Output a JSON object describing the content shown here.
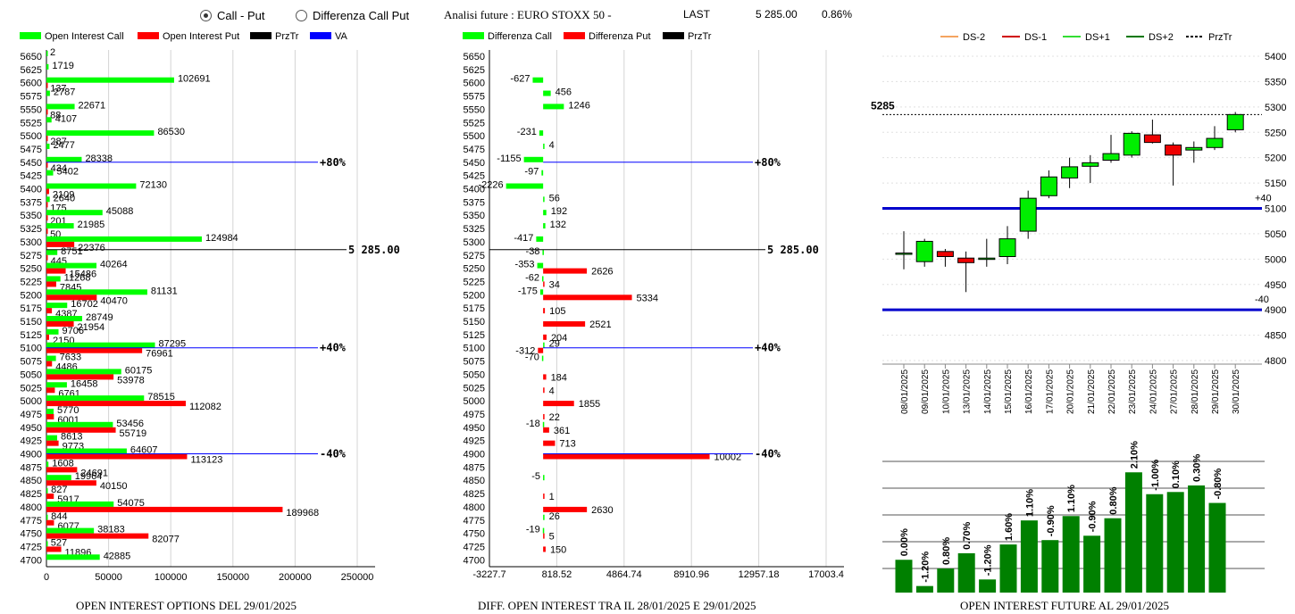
{
  "header": {
    "radio_call_put": "Call - Put",
    "radio_diff": "Differenza Call Put",
    "future_title": "Analisi future : EURO STOXX 50 -",
    "last_label": "LAST",
    "last_value": "5 285.00",
    "last_change": "0.86%"
  },
  "captions": {
    "left": "OPEN INTEREST OPTIONS DEL 29/01/2025",
    "middle": "DIFF. OPEN INTEREST TRA IL 28/01/2025 E 29/01/2025",
    "right": "OPEN INTEREST FUTURE AL 29/01/2025"
  },
  "colors": {
    "call": "#00ff00",
    "put": "#ff0000",
    "przt": "#000000",
    "va": "#0000ff",
    "future_bar": "#008000"
  },
  "chart_data": [
    {
      "type": "bar",
      "orientation": "horizontal",
      "legend": [
        "Open Interest Call",
        "Open Interest Put",
        "PrzTr",
        "VA"
      ],
      "categories": [
        "5650",
        "5625",
        "5600",
        "5575",
        "5550",
        "5525",
        "5500",
        "5475",
        "5450",
        "5425",
        "5400",
        "5375",
        "5350",
        "5325",
        "5300",
        "5275",
        "5250",
        "5225",
        "5200",
        "5175",
        "5150",
        "5125",
        "5100",
        "5075",
        "5050",
        "5025",
        "5000",
        "4975",
        "4950",
        "4925",
        "4900",
        "4875",
        "4850",
        "4825",
        "4800",
        "4775",
        "4750",
        "4725",
        "4700"
      ],
      "series": [
        {
          "name": "Open Interest Call",
          "values": [
            2,
            1719,
            102691,
            2787,
            22671,
            4107,
            86530,
            2477,
            28338,
            5402,
            72130,
            2640,
            45088,
            21985,
            124984,
            8751,
            40264,
            11268,
            81131,
            16702,
            28749,
            9706,
            87295,
            7633,
            60175,
            16458,
            78515,
            5770,
            53456,
            8613,
            64607,
            1608,
            19964,
            827,
            54075,
            844,
            38183,
            527,
            42885
          ]
        },
        {
          "name": "Open Interest Put",
          "values": [
            null,
            null,
            137,
            null,
            88,
            null,
            287,
            null,
            434,
            null,
            2109,
            175,
            201,
            50,
            22376,
            445,
            15486,
            7845,
            40470,
            4387,
            21954,
            2150,
            76961,
            4486,
            53978,
            6761,
            112082,
            6001,
            55719,
            9773,
            113123,
            24691,
            40150,
            5917,
            189968,
            6077,
            82077,
            11896,
            null
          ]
        }
      ],
      "price_line": {
        "label": "5 285.00",
        "value": 5285
      },
      "va_lines": [
        {
          "label": "+80%",
          "strike": "5450"
        },
        {
          "label": "+40%",
          "strike": "5100"
        },
        {
          "label": "-40%",
          "strike": "4900"
        }
      ],
      "xticks": [
        "0",
        "50000",
        "100000",
        "150000",
        "200000",
        "250000"
      ],
      "xlim": [
        0,
        250000
      ]
    },
    {
      "type": "bar",
      "orientation": "horizontal",
      "legend": [
        "Differenza Call",
        "Differenza Put",
        "PrzTr"
      ],
      "categories": [
        "5650",
        "5625",
        "5600",
        "5575",
        "5550",
        "5525",
        "5500",
        "5475",
        "5450",
        "5425",
        "5400",
        "5375",
        "5350",
        "5325",
        "5300",
        "5275",
        "5250",
        "5225",
        "5200",
        "5175",
        "5150",
        "5125",
        "5100",
        "5075",
        "5050",
        "5025",
        "5000",
        "4975",
        "4950",
        "4925",
        "4900",
        "4875",
        "4850",
        "4825",
        "4800",
        "4775",
        "4750",
        "4725",
        "4700"
      ],
      "series": [
        {
          "name": "Differenza Call",
          "values": [
            null,
            null,
            -627,
            456,
            1246,
            null,
            -231,
            4,
            -1155,
            -97,
            -2226,
            56,
            192,
            132,
            -417,
            -38,
            -353,
            -62,
            -175,
            null,
            null,
            null,
            29,
            -70,
            null,
            null,
            null,
            null,
            -18,
            null,
            null,
            null,
            -5,
            null,
            null,
            26,
            -19,
            null,
            null
          ]
        },
        {
          "name": "Differenza Put",
          "values": [
            null,
            null,
            null,
            null,
            null,
            null,
            null,
            null,
            null,
            null,
            null,
            null,
            null,
            null,
            null,
            null,
            2626,
            34,
            5334,
            105,
            2521,
            204,
            -312,
            null,
            184,
            4,
            1855,
            22,
            361,
            713,
            10002,
            null,
            null,
            1,
            2630,
            null,
            5,
            150,
            null
          ]
        }
      ],
      "price_line": {
        "label": "5 285.00",
        "value": 5285
      },
      "va_lines": [
        {
          "label": "+80%",
          "strike": "5450"
        },
        {
          "label": "+40%",
          "strike": "5100"
        },
        {
          "label": "-40%",
          "strike": "4900"
        }
      ],
      "xticks": [
        "-3227.7",
        "818.52",
        "4864.74",
        "8910.96",
        "12957.18",
        "17003.4"
      ],
      "xlim": [
        -3227.7,
        17003.4
      ]
    },
    {
      "type": "candlestick",
      "legend": [
        "DS-2",
        "DS-1",
        "DS+1",
        "DS+2",
        "PrzTr"
      ],
      "dates": [
        "08/01/2025",
        "09/01/2025",
        "10/01/2025",
        "13/01/2025",
        "14/01/2025",
        "15/01/2025",
        "16/01/2025",
        "17/01/2025",
        "20/01/2025",
        "21/01/2025",
        "22/01/2025",
        "23/01/2025",
        "24/01/2025",
        "27/01/2025",
        "28/01/2025",
        "29/01/2025",
        "30/01/2025"
      ],
      "open": [
        5010,
        4995,
        5015,
        5002,
        5000,
        5005,
        5055,
        5125,
        5160,
        5183,
        5195,
        5205,
        5245,
        5225,
        5215,
        5220,
        5255
      ],
      "close": [
        5012,
        5035,
        5005,
        4993,
        5002,
        5040,
        5120,
        5162,
        5182,
        5190,
        5208,
        5248,
        5230,
        5205,
        5220,
        5238,
        5285
      ],
      "high": [
        5055,
        5040,
        5020,
        5015,
        5040,
        5065,
        5135,
        5175,
        5200,
        5205,
        5245,
        5252,
        5275,
        5230,
        5232,
        5262,
        5290
      ],
      "low": [
        4980,
        4985,
        4985,
        4935,
        4985,
        4990,
        5040,
        5120,
        5140,
        5150,
        5190,
        5200,
        5228,
        5145,
        5190,
        5215,
        5250
      ],
      "price_marker": {
        "label": "5285",
        "value": 5285
      },
      "bands": [
        {
          "label": "+40",
          "value": 5100
        },
        {
          "label": "-40",
          "value": 4900
        }
      ],
      "yticks": [
        "5400",
        "5350",
        "5300",
        "5250",
        "5200",
        "5150",
        "5100",
        "5050",
        "5000",
        "4950",
        "4900",
        "4850",
        "4800"
      ],
      "ylim": [
        4800,
        5400
      ]
    },
    {
      "type": "bar",
      "bar_labels": [
        "0.00%",
        "-1.20%",
        "0.80%",
        "0.70%",
        "-1.20%",
        "1.60%",
        "1.10%",
        "-0.90%",
        "1.10%",
        "-0.90%",
        "0.80%",
        "2.10%",
        "-1.00%",
        "0.10%",
        "0.30%",
        "-0.80%"
      ],
      "values": [
        100.0,
        98.8,
        99.6,
        100.3,
        99.1,
        100.7,
        101.8,
        100.9,
        102.0,
        101.1,
        101.9,
        104.0,
        103.0,
        103.1,
        103.4,
        102.6
      ],
      "ylim": [
        98.5,
        104.5
      ]
    }
  ]
}
